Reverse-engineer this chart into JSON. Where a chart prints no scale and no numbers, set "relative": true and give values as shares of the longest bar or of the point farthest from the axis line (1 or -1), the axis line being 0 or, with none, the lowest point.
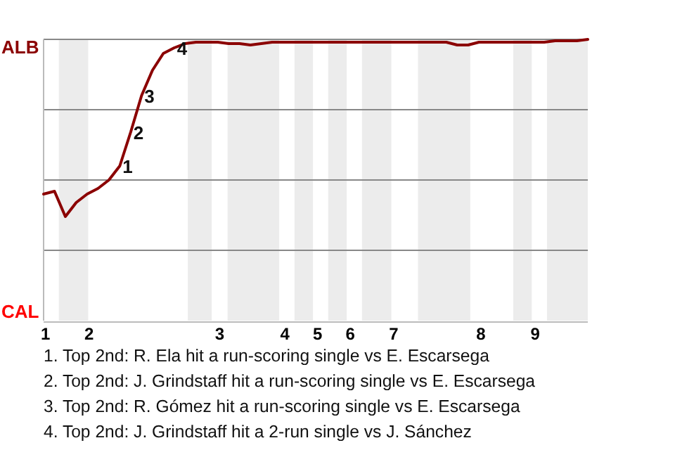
{
  "chart_data": {
    "type": "line",
    "relative": true,
    "categories": [
      "1",
      null,
      null,
      null,
      "2",
      null,
      null,
      null,
      null,
      null,
      null,
      null,
      null,
      null,
      null,
      null,
      "3",
      null,
      null,
      null,
      null,
      null,
      "4",
      null,
      null,
      "5",
      null,
      null,
      "6",
      null,
      null,
      null,
      "7",
      null,
      null,
      null,
      null,
      null,
      null,
      null,
      "8",
      null,
      null,
      null,
      null,
      "9",
      null,
      null,
      null,
      null,
      null
    ],
    "series": [
      {
        "color": "#8b0000",
        "values": [
          0.45,
          0.46,
          0.37,
          0.42,
          0.45,
          0.47,
          0.5,
          0.55,
          0.67,
          0.8,
          0.89,
          0.95,
          0.97,
          0.985,
          0.99,
          0.99,
          0.99,
          0.985,
          0.985,
          0.98,
          0.985,
          0.99,
          0.99,
          0.99,
          0.99,
          0.99,
          0.99,
          0.99,
          0.99,
          0.99,
          0.99,
          0.99,
          0.99,
          0.99,
          0.99,
          0.99,
          0.99,
          0.99,
          0.98,
          0.98,
          0.99,
          0.99,
          0.99,
          0.99,
          0.99,
          0.99,
          0.99,
          0.995,
          0.995,
          0.995,
          1
        ]
      }
    ],
    "grid": "y",
    "marker": "none",
    "annotations": [
      {
        "text": "1",
        "y": 0.55
      },
      {
        "text": "2",
        "y": 0.67
      },
      {
        "text": "3",
        "y": 0.8
      },
      {
        "text": "4",
        "y": 0.97
      },
      "ALB",
      "CAL",
      "1. Top 2nd: R. Ela hit a run-scoring single vs E. Escarsega",
      "2. Top 2nd: J. Grindstaff hit a run-scoring single vs E. Escarsega",
      "3. Top 2nd: R. Gómez hit a run-scoring single vs E. Escarsega",
      "4. Top 2nd: J. Grindstaff hit a 2-run single vs J. Sánchez"
    ]
  }
}
